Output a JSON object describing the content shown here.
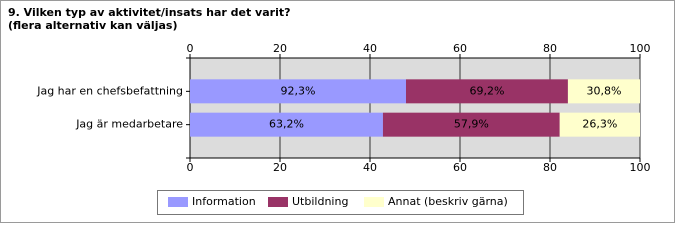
{
  "chart_data": {
    "type": "bar",
    "orientation": "horizontal",
    "stacking": "percent",
    "title": "9. Vilken typ av aktivitet/insats har det varit?",
    "subtitle": "(flera alternativ kan väljas)",
    "categories": [
      "Jag har en chefsbefattning",
      "Jag är medarbetare"
    ],
    "series": [
      {
        "name": "Information",
        "color": "#9999ff",
        "values": [
          92.3,
          63.2
        ],
        "value_labels": [
          "92,3%",
          "63,2%"
        ]
      },
      {
        "name": "Utbildning",
        "color": "#993366",
        "values": [
          69.2,
          57.9
        ],
        "value_labels": [
          "69,2%",
          "57,9%"
        ]
      },
      {
        "name": "Annat (beskriv gärna)",
        "color": "#ffffcc",
        "values": [
          30.8,
          26.3
        ],
        "value_labels": [
          "30,8%",
          "26,3%"
        ]
      }
    ],
    "xlim": [
      0,
      100
    ],
    "xticks": [
      0,
      20,
      40,
      60,
      80,
      100
    ],
    "grid": true,
    "legend": "bottom"
  }
}
